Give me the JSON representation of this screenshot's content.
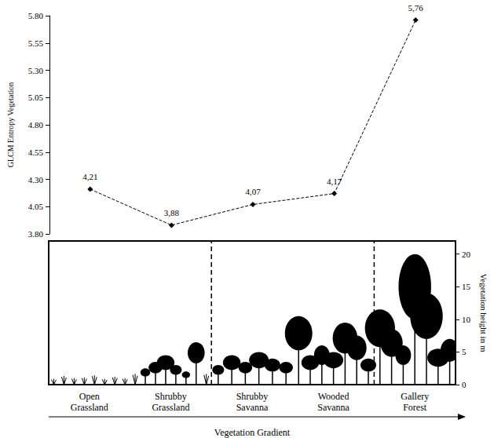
{
  "chart_data": [
    {
      "type": "line",
      "y_label": "GLCM Entropy Vegetation",
      "categories": [
        "Open Grassland",
        "Shrubby Grassland",
        "Shrubby Savanna",
        "Wooded Savanna",
        "Gallery Forest"
      ],
      "values": [
        4.21,
        3.88,
        4.07,
        4.17,
        5.76
      ],
      "value_labels": [
        "4,21",
        "3,88",
        "4,07",
        "4,17",
        "5,76"
      ],
      "data_labels": true,
      "ylim": [
        3.8,
        5.8
      ],
      "yticks": [
        {
          "value": 3.8,
          "label": "3.80"
        },
        4.05,
        {
          "value": 4.3,
          "label": "4.30"
        },
        4.55,
        {
          "value": 4.8,
          "label": "4.80"
        },
        5.05,
        {
          "value": 5.3,
          "label": "5.30"
        },
        5.55,
        {
          "value": 5.8,
          "label": "5.80"
        }
      ],
      "tick_labels": "y",
      "color": "#000000",
      "marker": "diamond",
      "line_style": "dashed",
      "grid": false
    },
    {
      "type": "profile",
      "x_label": "Vegetation Gradient",
      "y2_label": "Vegetation height in m",
      "categories": [
        "Open Grassland",
        "Shrubby Grassland",
        "Shrubby Savanna",
        "Wooded Savanna",
        "Gallery Forest"
      ],
      "groups": [
        [
          "Open Grassland",
          "Shrubby Grassland"
        ],
        [
          "Shrubby Savanna",
          "Wooded Savanna"
        ],
        [
          "Gallery Forest"
        ]
      ],
      "plant_heights": [
        [
          0.8,
          1.2,
          0.9,
          1.0,
          1.3,
          0.8,
          1.1,
          0.9
        ],
        [
          1.5,
          2.5,
          3.5,
          4.5,
          3.0,
          2.0,
          6.5,
          1.5
        ],
        [
          3.0,
          4.5,
          3.5,
          5.0,
          4.0,
          3.5
        ],
        [
          10.5,
          4.5,
          6.0,
          5.0,
          9.5,
          7.5,
          4.0
        ],
        [
          11.5,
          8.5,
          6.0,
          20.0,
          14.0,
          5.5,
          7.0
        ]
      ],
      "y2lim": [
        0,
        22
      ],
      "y2ticks": [
        0,
        5,
        10,
        15,
        20
      ],
      "tick_labels": true,
      "color": "#000000",
      "grid": false
    }
  ]
}
